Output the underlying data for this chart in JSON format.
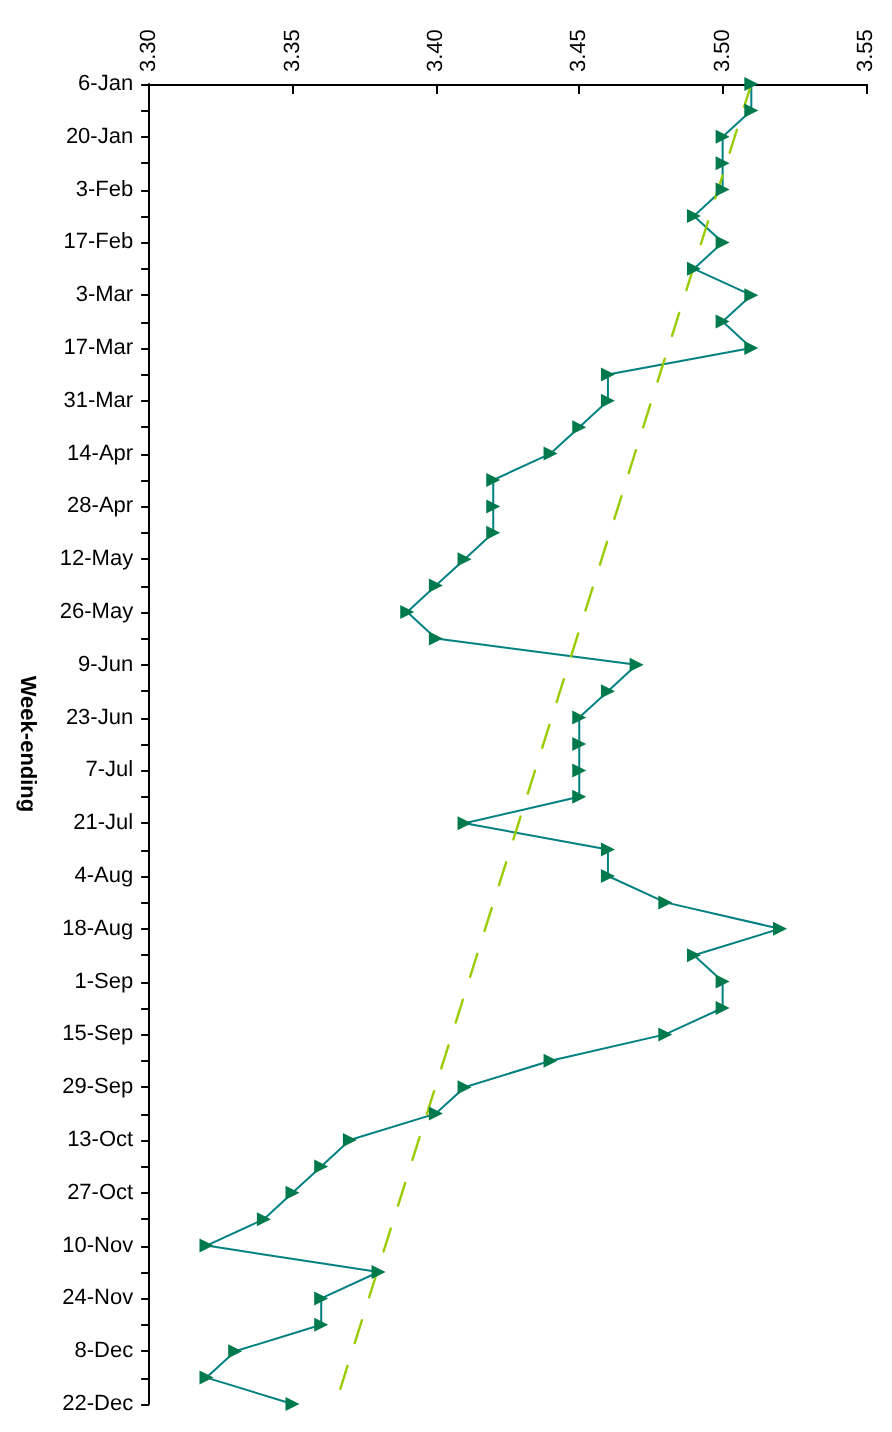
{
  "chart_data": {
    "type": "line",
    "orientation": "horizontal",
    "ylabel": "Week-ending",
    "categories": [
      "6-Jan",
      null,
      "20-Jan",
      null,
      "3-Feb",
      null,
      "17-Feb",
      null,
      "3-Mar",
      null,
      "17-Mar",
      null,
      "31-Mar",
      null,
      "14-Apr",
      null,
      "28-Apr",
      null,
      "12-May",
      null,
      "26-May",
      null,
      "9-Jun",
      null,
      "23-Jun",
      null,
      "7-Jul",
      null,
      "21-Jul",
      null,
      "4-Aug",
      null,
      "18-Aug",
      null,
      "1-Sep",
      null,
      "15-Sep",
      null,
      "29-Sep",
      null,
      "13-Oct",
      null,
      "27-Oct",
      null,
      "10-Nov",
      null,
      "24-Nov",
      null,
      "8-Dec",
      null,
      "22-Dec"
    ],
    "series": [
      {
        "color": "#008080",
        "marker": "triangle",
        "line_style": "solid",
        "values": [
          3.51,
          3.51,
          3.5,
          3.5,
          3.5,
          3.49,
          3.5,
          3.49,
          3.51,
          3.5,
          3.51,
          3.46,
          3.46,
          3.45,
          3.44,
          3.42,
          3.42,
          3.42,
          3.41,
          3.4,
          3.39,
          3.4,
          3.47,
          3.46,
          3.45,
          3.45,
          3.45,
          3.45,
          3.41,
          3.46,
          3.46,
          3.48,
          3.52,
          3.49,
          3.5,
          3.5,
          3.48,
          3.44,
          3.41,
          3.4,
          3.37,
          3.36,
          3.35,
          3.34,
          3.32,
          3.38,
          3.36,
          3.36,
          3.33,
          3.32,
          3.35
        ]
      },
      {
        "type": "line",
        "color": "#99cc00",
        "marker": "none",
        "line_style": "dashed",
        "x": [
          "6-Jan",
          "22-Dec"
        ],
        "values": [
          3.51,
          3.365
        ]
      }
    ],
    "xlim": [
      3.3,
      3.55
    ],
    "xticks": [
      {
        "value": 3.3,
        "label": "3.30"
      },
      {
        "value": 3.35,
        "label": "3.35"
      },
      {
        "value": 3.4,
        "label": "3.40"
      },
      {
        "value": 3.45,
        "label": "3.45"
      },
      {
        "value": 3.5,
        "label": "3.50"
      },
      {
        "value": 3.55,
        "label": "3.55"
      }
    ],
    "grid": false
  }
}
